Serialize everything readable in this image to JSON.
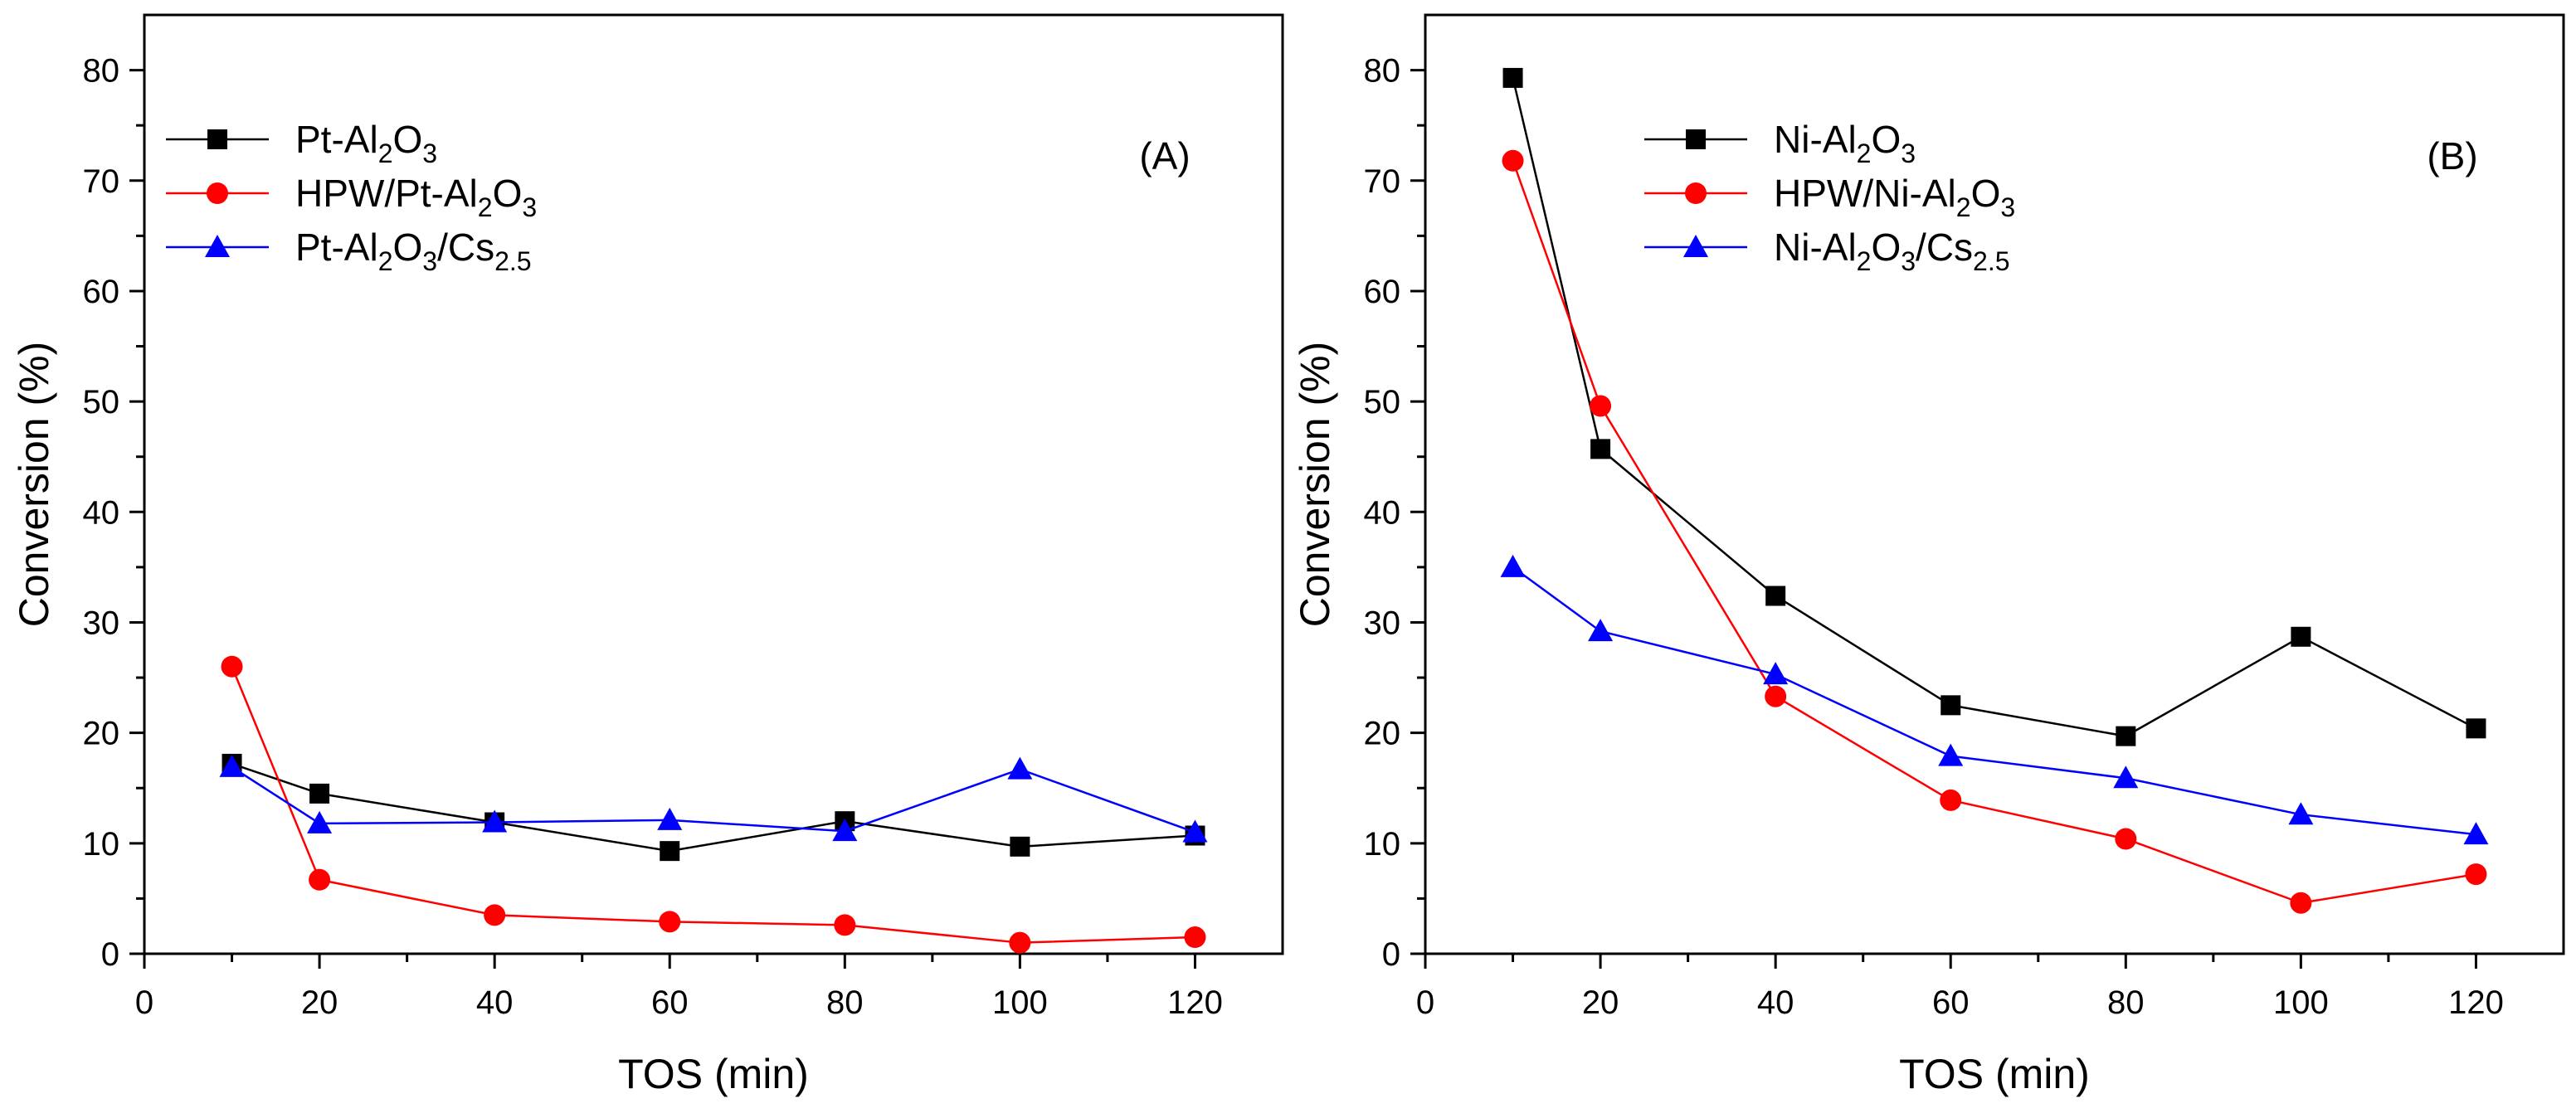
{
  "colors": {
    "series_1": "#000000",
    "series_2": "#ff0000",
    "series_3": "#0000ff"
  },
  "chart_data": [
    {
      "type": "line",
      "panel_label": "(A)",
      "xlabel": "TOS (min)",
      "ylabel": "Conversion (%)",
      "xlim": [
        0,
        130
      ],
      "ylim": [
        0,
        85
      ],
      "x_ticks": [
        0,
        20,
        40,
        60,
        80,
        100,
        120
      ],
      "y_ticks": [
        0,
        10,
        20,
        30,
        40,
        50,
        60,
        70,
        80
      ],
      "legend_position": "top-left",
      "series": [
        {
          "name": "Pt-Al2O3",
          "legend_parts": [
            {
              "t": "Pt-Al"
            },
            {
              "t": "2",
              "sub": true
            },
            {
              "t": "O"
            },
            {
              "t": "3",
              "sub": true
            }
          ],
          "color": "#000000",
          "marker": "square",
          "x": [
            10,
            20,
            40,
            60,
            80,
            100,
            120
          ],
          "y": [
            17.2,
            14.5,
            11.9,
            9.3,
            12.0,
            9.7,
            10.7
          ]
        },
        {
          "name": "HPW/Pt-Al2O3",
          "legend_parts": [
            {
              "t": "HPW/Pt-Al"
            },
            {
              "t": "2",
              "sub": true
            },
            {
              "t": "O"
            },
            {
              "t": "3",
              "sub": true
            }
          ],
          "color": "#ff0000",
          "marker": "circle",
          "x": [
            10,
            20,
            40,
            60,
            80,
            100,
            120
          ],
          "y": [
            26.0,
            6.7,
            3.5,
            2.9,
            2.6,
            1.0,
            1.5
          ]
        },
        {
          "name": "Pt-Al2O3/Cs2.5",
          "legend_parts": [
            {
              "t": "Pt-Al"
            },
            {
              "t": "2",
              "sub": true
            },
            {
              "t": "O"
            },
            {
              "t": "3",
              "sub": true
            },
            {
              "t": "/Cs"
            },
            {
              "t": "2.5",
              "sub": true
            }
          ],
          "color": "#0000ff",
          "marker": "triangle",
          "x": [
            10,
            20,
            40,
            60,
            80,
            100,
            120
          ],
          "y": [
            16.9,
            11.8,
            11.9,
            12.1,
            11.1,
            16.7,
            11.0
          ]
        }
      ]
    },
    {
      "type": "line",
      "panel_label": "(B)",
      "xlabel": "TOS (min)",
      "ylabel": "Conversion (%)",
      "xlim": [
        0,
        130
      ],
      "ylim": [
        0,
        85
      ],
      "x_ticks": [
        0,
        20,
        40,
        60,
        80,
        100,
        120
      ],
      "y_ticks": [
        0,
        10,
        20,
        30,
        40,
        50,
        60,
        70,
        80
      ],
      "legend_position": "top-center",
      "series": [
        {
          "name": "Ni-Al2O3",
          "legend_parts": [
            {
              "t": "Ni-Al"
            },
            {
              "t": "2",
              "sub": true
            },
            {
              "t": "O"
            },
            {
              "t": "3",
              "sub": true
            }
          ],
          "color": "#000000",
          "marker": "square",
          "x": [
            10,
            20,
            40,
            60,
            80,
            100,
            120
          ],
          "y": [
            79.3,
            45.7,
            32.4,
            22.5,
            19.7,
            28.7,
            20.4
          ]
        },
        {
          "name": "HPW/Ni-Al2O3",
          "legend_parts": [
            {
              "t": "HPW/Ni-Al"
            },
            {
              "t": "2",
              "sub": true
            },
            {
              "t": "O"
            },
            {
              "t": "3",
              "sub": true
            }
          ],
          "color": "#ff0000",
          "marker": "circle",
          "x": [
            10,
            20,
            40,
            60,
            80,
            100,
            120
          ],
          "y": [
            71.8,
            49.6,
            23.3,
            13.9,
            10.4,
            4.6,
            7.2
          ]
        },
        {
          "name": "Ni-Al2O3/Cs2.5",
          "legend_parts": [
            {
              "t": "Ni-Al"
            },
            {
              "t": "2",
              "sub": true
            },
            {
              "t": "O"
            },
            {
              "t": "3",
              "sub": true
            },
            {
              "t": "/Cs"
            },
            {
              "t": "2.5",
              "sub": true
            }
          ],
          "color": "#0000ff",
          "marker": "triangle",
          "x": [
            10,
            20,
            40,
            60,
            80,
            100,
            120
          ],
          "y": [
            35.0,
            29.2,
            25.3,
            17.9,
            15.9,
            12.6,
            10.8
          ]
        }
      ]
    }
  ]
}
